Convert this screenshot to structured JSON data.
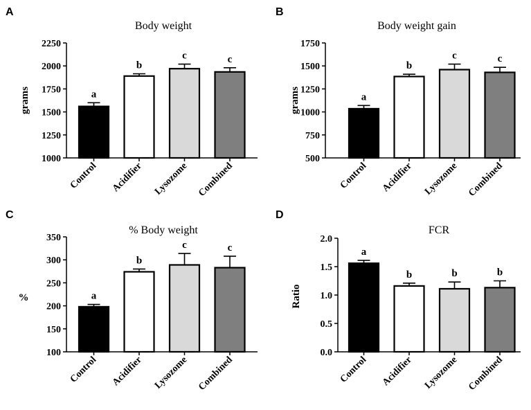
{
  "colors": {
    "Control": "#000000",
    "Acidifier": "#ffffff",
    "Lysozome": "#d9d9d9",
    "Combined": "#7f7f7f"
  },
  "chart_data": [
    {
      "panel": "A",
      "type": "bar",
      "title": "Body weight",
      "ylabel": "grams",
      "categories": [
        "Control",
        "Acidifier",
        "Lysozome",
        "Combined"
      ],
      "values": [
        1560,
        1890,
        1970,
        1935
      ],
      "errors": [
        40,
        25,
        50,
        45
      ],
      "significance": [
        "a",
        "b",
        "c",
        "c"
      ],
      "ylim": [
        1000,
        2250
      ],
      "yticks": [
        "1000",
        "1250",
        "1500",
        "1750",
        "2000",
        "2250"
      ]
    },
    {
      "panel": "B",
      "type": "bar",
      "title": "Body weight  gain",
      "ylabel": "grams",
      "categories": [
        "Control",
        "Acidifier",
        "Lysozome",
        "Combined"
      ],
      "values": [
        1035,
        1385,
        1460,
        1430
      ],
      "errors": [
        35,
        25,
        60,
        55
      ],
      "significance": [
        "a",
        "b",
        "c",
        "c"
      ],
      "ylim": [
        500,
        1750
      ],
      "yticks": [
        "500",
        "750",
        "1000",
        "1250",
        "1500",
        "1750"
      ]
    },
    {
      "panel": "C",
      "type": "bar",
      "title": "% Body weight",
      "ylabel": "%",
      "categories": [
        "Control",
        "Acidifier",
        "Lysozome",
        "Combined"
      ],
      "values": [
        198,
        274,
        289,
        283
      ],
      "errors": [
        5,
        6,
        25,
        25
      ],
      "significance": [
        "a",
        "b",
        "c",
        "c"
      ],
      "ylim": [
        100,
        350
      ],
      "yticks": [
        "100",
        "150",
        "200",
        "250",
        "300",
        "350"
      ]
    },
    {
      "panel": "D",
      "type": "bar",
      "title": "FCR",
      "ylabel": "Ratio",
      "categories": [
        "Control",
        "Acidifier",
        "Lysozome",
        "Combined"
      ],
      "values": [
        1.56,
        1.16,
        1.11,
        1.13
      ],
      "errors": [
        0.05,
        0.05,
        0.12,
        0.12
      ],
      "significance": [
        "a",
        "b",
        "b",
        "b"
      ],
      "ylim": [
        0,
        2
      ],
      "yticks": [
        "0.0",
        "0.5",
        "1.0",
        "1.5",
        "2.0"
      ]
    }
  ]
}
